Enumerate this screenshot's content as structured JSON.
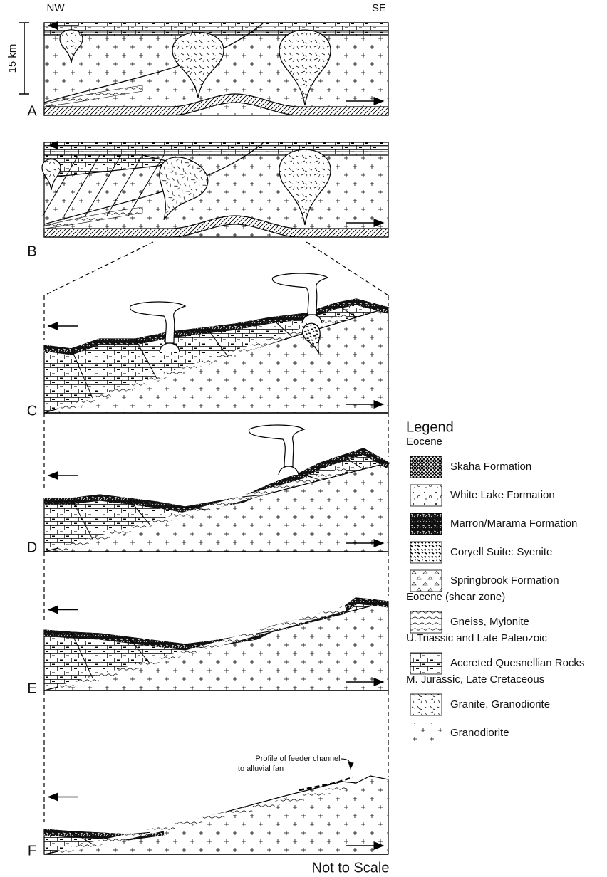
{
  "compass": {
    "left": "NW",
    "right": "SE"
  },
  "scale_bar": "15 km",
  "panels": [
    {
      "label": "A"
    },
    {
      "label": "B"
    },
    {
      "label": "C"
    },
    {
      "label": "D"
    },
    {
      "label": "E"
    },
    {
      "label": "F"
    }
  ],
  "annotation": {
    "lines": [
      "Profile of feeder channel",
      "to alluvial fan"
    ]
  },
  "footer": "Not to Scale",
  "legend": {
    "title": "Legend",
    "groups": [
      {
        "name": "Eocene",
        "items": [
          "Skaha Formation",
          "White Lake Formation",
          "Marron/Marama Formation",
          "Coryell Suite: Syenite",
          "Springbrook Formation"
        ]
      },
      {
        "name": "Eocene (shear zone)",
        "items": [
          "Gneiss, Mylonite"
        ]
      },
      {
        "name": "U.Triassic and Late Paleozoic",
        "items": [
          "Accreted Quesnellian Rocks"
        ]
      },
      {
        "name": "M. Jurassic, Late Cretaceous",
        "items": [
          "Granite, Granodiorite",
          "Granodiorite"
        ]
      }
    ]
  }
}
